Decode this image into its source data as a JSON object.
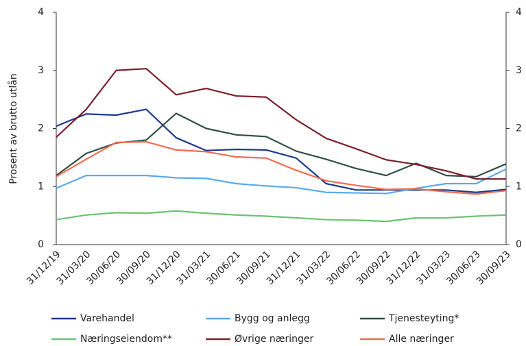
{
  "chart_data": {
    "type": "line",
    "y_label": "Prosent av brutto utlån",
    "categories": [
      "31/12/19",
      "31/03/20",
      "30/06/20",
      "30/09/20",
      "31/12/20",
      "31/03/21",
      "30/06/21",
      "30/09/21",
      "31/12/21",
      "31/03/22",
      "30/06/22",
      "30/09/22",
      "31/12/22",
      "31/03/23",
      "30/06/23",
      "30/09/23"
    ],
    "series": [
      {
        "name": "Varehandel",
        "color": "#1b3a8c",
        "values": [
          2.04,
          2.25,
          2.23,
          2.33,
          1.84,
          1.62,
          1.64,
          1.63,
          1.49,
          1.05,
          0.94,
          0.94,
          0.94,
          0.94,
          0.9,
          0.95
        ]
      },
      {
        "name": "Bygg og anlegg",
        "color": "#5aa9ec",
        "values": [
          0.97,
          1.19,
          1.19,
          1.19,
          1.15,
          1.14,
          1.05,
          1.01,
          0.98,
          0.9,
          0.89,
          0.88,
          0.97,
          1.05,
          1.05,
          1.3
        ]
      },
      {
        "name": "Tjenesteyting*",
        "color": "#2f4f47",
        "values": [
          1.19,
          1.57,
          1.75,
          1.8,
          2.26,
          2.0,
          1.89,
          1.86,
          1.61,
          1.47,
          1.31,
          1.19,
          1.4,
          1.19,
          1.17,
          1.39
        ]
      },
      {
        "name": "Næringseiendom**",
        "color": "#6cc272",
        "values": [
          0.43,
          0.51,
          0.55,
          0.54,
          0.58,
          0.54,
          0.51,
          0.49,
          0.46,
          0.43,
          0.42,
          0.4,
          0.46,
          0.46,
          0.49,
          0.51
        ]
      },
      {
        "name": "Øvrige næringer",
        "color": "#7b1f2c",
        "values": [
          1.85,
          2.33,
          3.0,
          3.03,
          2.58,
          2.69,
          2.56,
          2.54,
          2.15,
          1.83,
          1.65,
          1.46,
          1.38,
          1.27,
          1.13,
          1.13
        ]
      },
      {
        "name": "Alle næringer",
        "color": "#f26b4f",
        "values": [
          1.17,
          1.47,
          1.76,
          1.77,
          1.63,
          1.6,
          1.51,
          1.49,
          1.28,
          1.1,
          1.02,
          0.95,
          0.96,
          0.91,
          0.87,
          0.93
        ]
      }
    ],
    "ylim": [
      0,
      4
    ],
    "yticks": [
      0,
      1,
      2,
      3,
      4
    ],
    "y2lim": [
      0,
      4
    ],
    "y2ticks": [
      0,
      1,
      2,
      3,
      4
    ],
    "grid": false
  }
}
